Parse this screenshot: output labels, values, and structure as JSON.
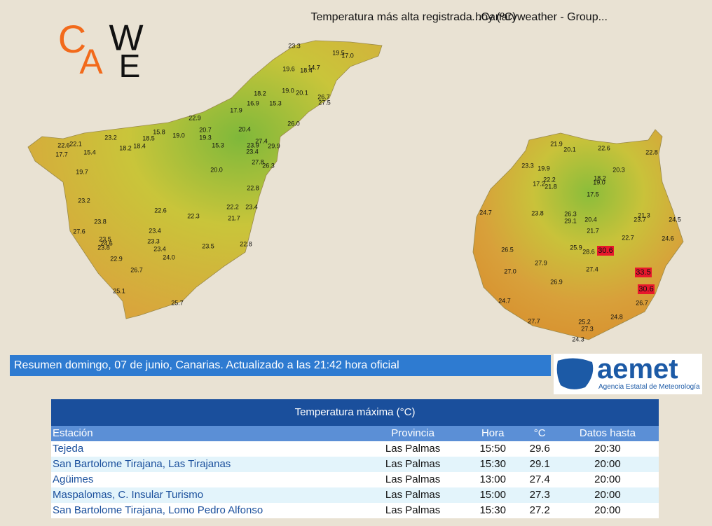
{
  "header": {
    "title": "Temperatura más alta registrada hoy (ºC)",
    "source": "...Canaryweather - Group..."
  },
  "logo": {
    "letters": [
      "C",
      "A",
      "W",
      "E"
    ]
  },
  "map": {
    "tenerife": [
      "23.3",
      "19.5",
      "17.0",
      "19.6",
      "18.4",
      "14.7",
      "19.0",
      "20.1",
      "26.7",
      "27.5",
      "18.2",
      "16.9",
      "15.3",
      "17.9",
      "22.9",
      "26.0",
      "20.7",
      "20.4",
      "15.8",
      "19.0",
      "19.3",
      "23.2",
      "18.5",
      "27.4",
      "22.6",
      "22.1",
      "18.2",
      "18.4",
      "15.3",
      "23.9",
      "29.9",
      "15.4",
      "17.7",
      "23.4",
      "27.8",
      "26.3",
      "20.0",
      "19.7",
      "22.8",
      "23.2",
      "22.6",
      "22.2",
      "23.4",
      "22.3",
      "21.7",
      "23.8",
      "27.6",
      "23.4",
      "23.3",
      "24.6",
      "23.5",
      "23.8",
      "22.8",
      "23.5",
      "23.4",
      "22.9",
      "24.0",
      "26.7",
      "25.1",
      "25.7"
    ],
    "gran_canaria": [
      "22.8",
      "21.9",
      "20.1",
      "22.6",
      "23.3",
      "19.9",
      "20.3",
      "18.2",
      "19.0",
      "22.2",
      "17.2",
      "21.8",
      "17.5",
      "24.7",
      "23.8",
      "26.3",
      "29.1",
      "20.4",
      "21.3",
      "23.7",
      "24.5",
      "21.7",
      "22.7",
      "24.6",
      "26.5",
      "25.9",
      "28.6",
      "30.6",
      "27.9",
      "27.4",
      "27.0",
      "33.5",
      "26.9",
      "30.6",
      "24.7",
      "26.7",
      "24.8",
      "27.7",
      "25.2",
      "27.3",
      "24.3"
    ]
  },
  "banner": {
    "text": "Resumen domingo, 07 de junio, Canarias. Actualizado a las 21:42 hora oficial"
  },
  "aemet": {
    "name": "aemet",
    "subtitle": "Agencia Estatal de Meteorología"
  },
  "table": {
    "title": "Temperatura máxima (°C)",
    "columns": [
      "Estación",
      "Provincia",
      "Hora",
      "°C",
      "Datos hasta"
    ],
    "rows": [
      [
        "Tejeda",
        "Las Palmas",
        "15:50",
        "29.6",
        "20:30"
      ],
      [
        "San Bartolome Tirajana, Las Tirajanas",
        "Las Palmas",
        "15:30",
        "29.1",
        "20:00"
      ],
      [
        "Agüimes",
        "Las Palmas",
        "13:00",
        "27.4",
        "20:00"
      ],
      [
        "Maspalomas, C. Insular Turismo",
        "Las Palmas",
        "15:00",
        "27.3",
        "20:00"
      ],
      [
        "San Bartolome Tirajana, Lomo Pedro Alfonso",
        "Las Palmas",
        "15:30",
        "27.2",
        "20:00"
      ]
    ]
  }
}
